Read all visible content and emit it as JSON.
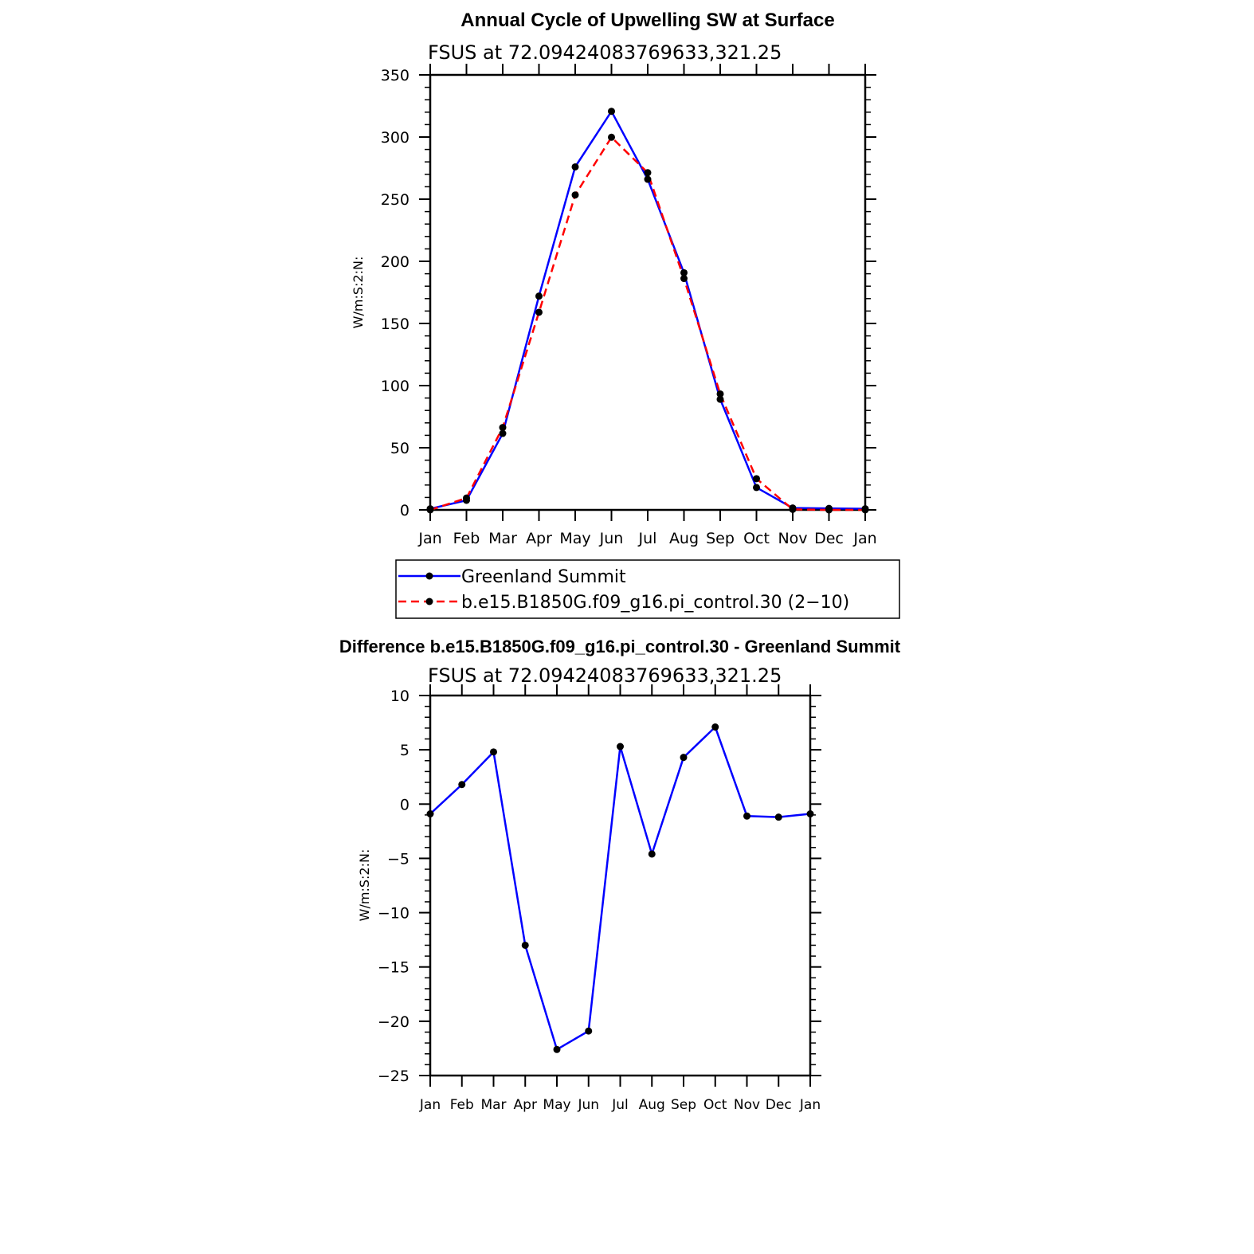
{
  "chart_data": [
    {
      "type": "line",
      "title": "Annual Cycle of Upwelling SW at Surface",
      "subtitle": "FSUS at 72.09424083769633,321.25",
      "xlabel": "",
      "ylabel": "W/m:S:2:N:",
      "categories": [
        "Jan",
        "Feb",
        "Mar",
        "Apr",
        "May",
        "Jun",
        "Jul",
        "Aug",
        "Sep",
        "Oct",
        "Nov",
        "Dec",
        "Jan"
      ],
      "ylim": [
        0,
        350
      ],
      "yticks": [
        0,
        50,
        100,
        150,
        200,
        250,
        300,
        350
      ],
      "grid": false,
      "legend_placement": "bottom",
      "series": [
        {
          "name": "Greenland Summit",
          "color": "#0000ff",
          "dash": "solid",
          "marker": "dot",
          "values": [
            0.9,
            7.7,
            61.5,
            172,
            276,
            320.7,
            266,
            190.8,
            89,
            18,
            1.5,
            1.2,
            0.9
          ]
        },
        {
          "name": "b.e15.B1850G.f09_g16.pi_control.30 (2−10)",
          "color": "#ff0000",
          "dash": "dashed",
          "marker": "dot",
          "values": [
            0,
            9.5,
            66.3,
            159,
            253.4,
            299.8,
            271.3,
            186.2,
            93.3,
            25.1,
            0.4,
            0,
            0
          ]
        }
      ]
    },
    {
      "type": "line",
      "title": "Difference b.e15.B1850G.f09_g16.pi_control.30 - Greenland Summit",
      "subtitle": "FSUS at 72.09424083769633,321.25",
      "xlabel": "",
      "ylabel": "W/m:S:2:N:",
      "categories": [
        "Jan",
        "Feb",
        "Mar",
        "Apr",
        "May",
        "Jun",
        "Jul",
        "Aug",
        "Sep",
        "Oct",
        "Nov",
        "Dec",
        "Jan"
      ],
      "ylim": [
        -25,
        10
      ],
      "yticks": [
        -25,
        -20,
        -15,
        -10,
        -5,
        0,
        5,
        10
      ],
      "ytick_labels": [
        "−25",
        "−20",
        "−15",
        "−10",
        "−5",
        "0",
        "5",
        "10"
      ],
      "grid": false,
      "series": [
        {
          "color": "#0000ff",
          "dash": "solid",
          "marker": "dot",
          "values": [
            -0.9,
            1.8,
            4.8,
            -13,
            -22.6,
            -20.9,
            5.3,
            -4.6,
            4.3,
            7.1,
            -1.1,
            -1.2,
            -0.9
          ]
        }
      ]
    }
  ]
}
